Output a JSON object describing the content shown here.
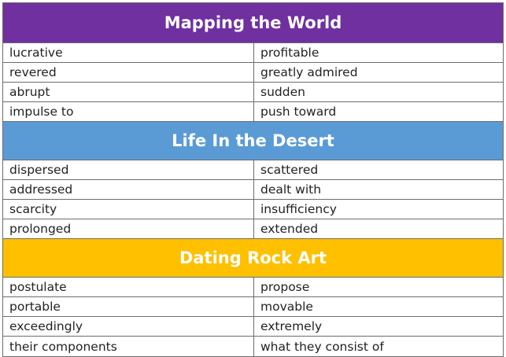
{
  "colors": {
    "section_1": "#7030a0",
    "section_2": "#5b9bd5",
    "section_3": "#ffc000",
    "border": "#6d6d6d",
    "text": "#222222"
  },
  "sections": [
    {
      "title": "Mapping the World",
      "rows": [
        {
          "word": "lucrative",
          "definition": "profitable"
        },
        {
          "word": "revered",
          "definition": "greatly admired"
        },
        {
          "word": "abrupt",
          "definition": "sudden"
        },
        {
          "word": "impulse to",
          "definition": "push toward"
        }
      ]
    },
    {
      "title": "Life In the Desert",
      "rows": [
        {
          "word": "dispersed",
          "definition": "scattered"
        },
        {
          "word": "addressed",
          "definition": "dealt with"
        },
        {
          "word": "scarcity",
          "definition": "insufficiency"
        },
        {
          "word": "prolonged",
          "definition": "extended"
        }
      ]
    },
    {
      "title": "Dating Rock Art",
      "rows": [
        {
          "word": "postulate",
          "definition": "propose"
        },
        {
          "word": "portable",
          "definition": "movable"
        },
        {
          "word": "exceedingly",
          "definition": "extremely"
        },
        {
          "word": "their components",
          "definition": "what they consist of"
        }
      ]
    }
  ]
}
